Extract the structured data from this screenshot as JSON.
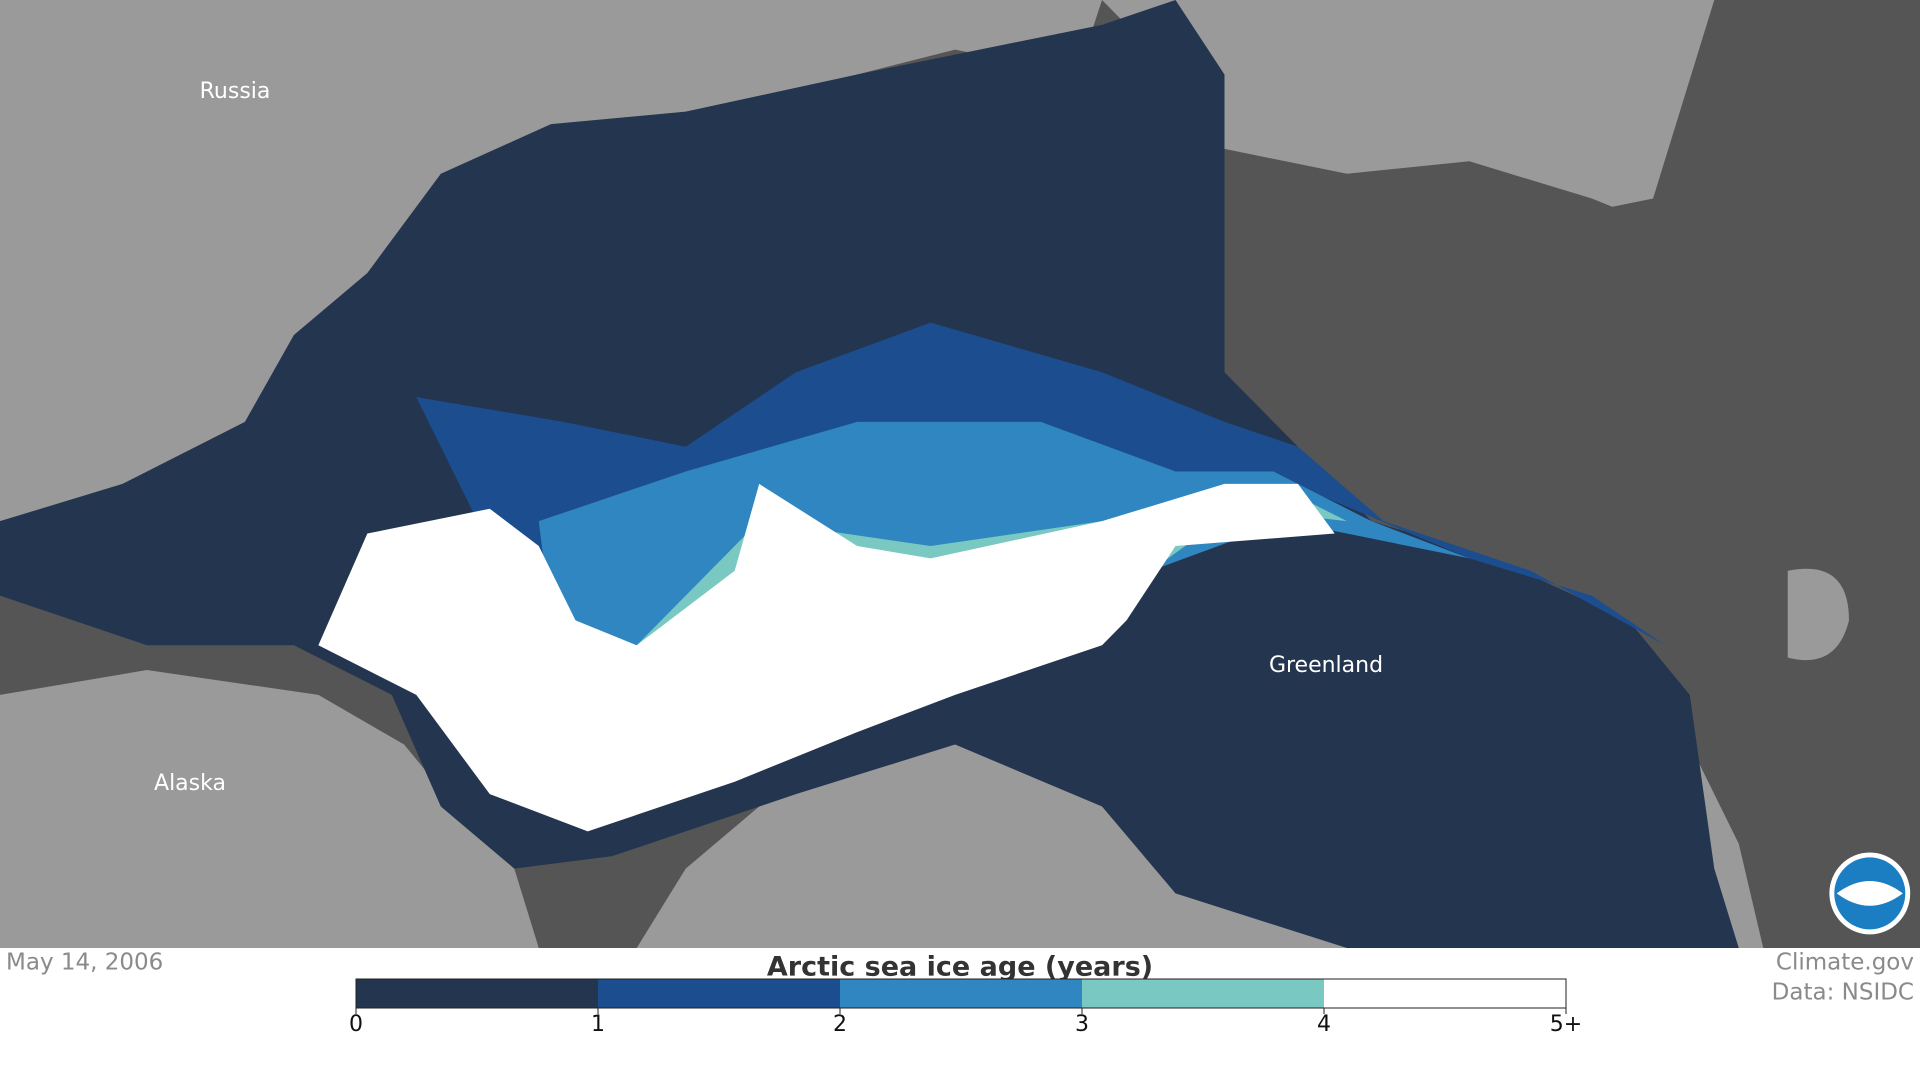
{
  "map": {
    "labels": [
      "Russia",
      "Alaska",
      "Greenland"
    ]
  },
  "footer": {
    "date": "May 14, 2006",
    "credits": [
      "Climate.gov",
      "Data: NSIDC"
    ]
  },
  "legend": {
    "title": "Arctic sea ice age (years)",
    "ticks": [
      "0",
      "1",
      "2",
      "3",
      "4",
      "5+"
    ],
    "colors": [
      "#243550",
      "#1c4e8f",
      "#2f86c0",
      "#79c8c2",
      "#ffffff"
    ]
  }
}
